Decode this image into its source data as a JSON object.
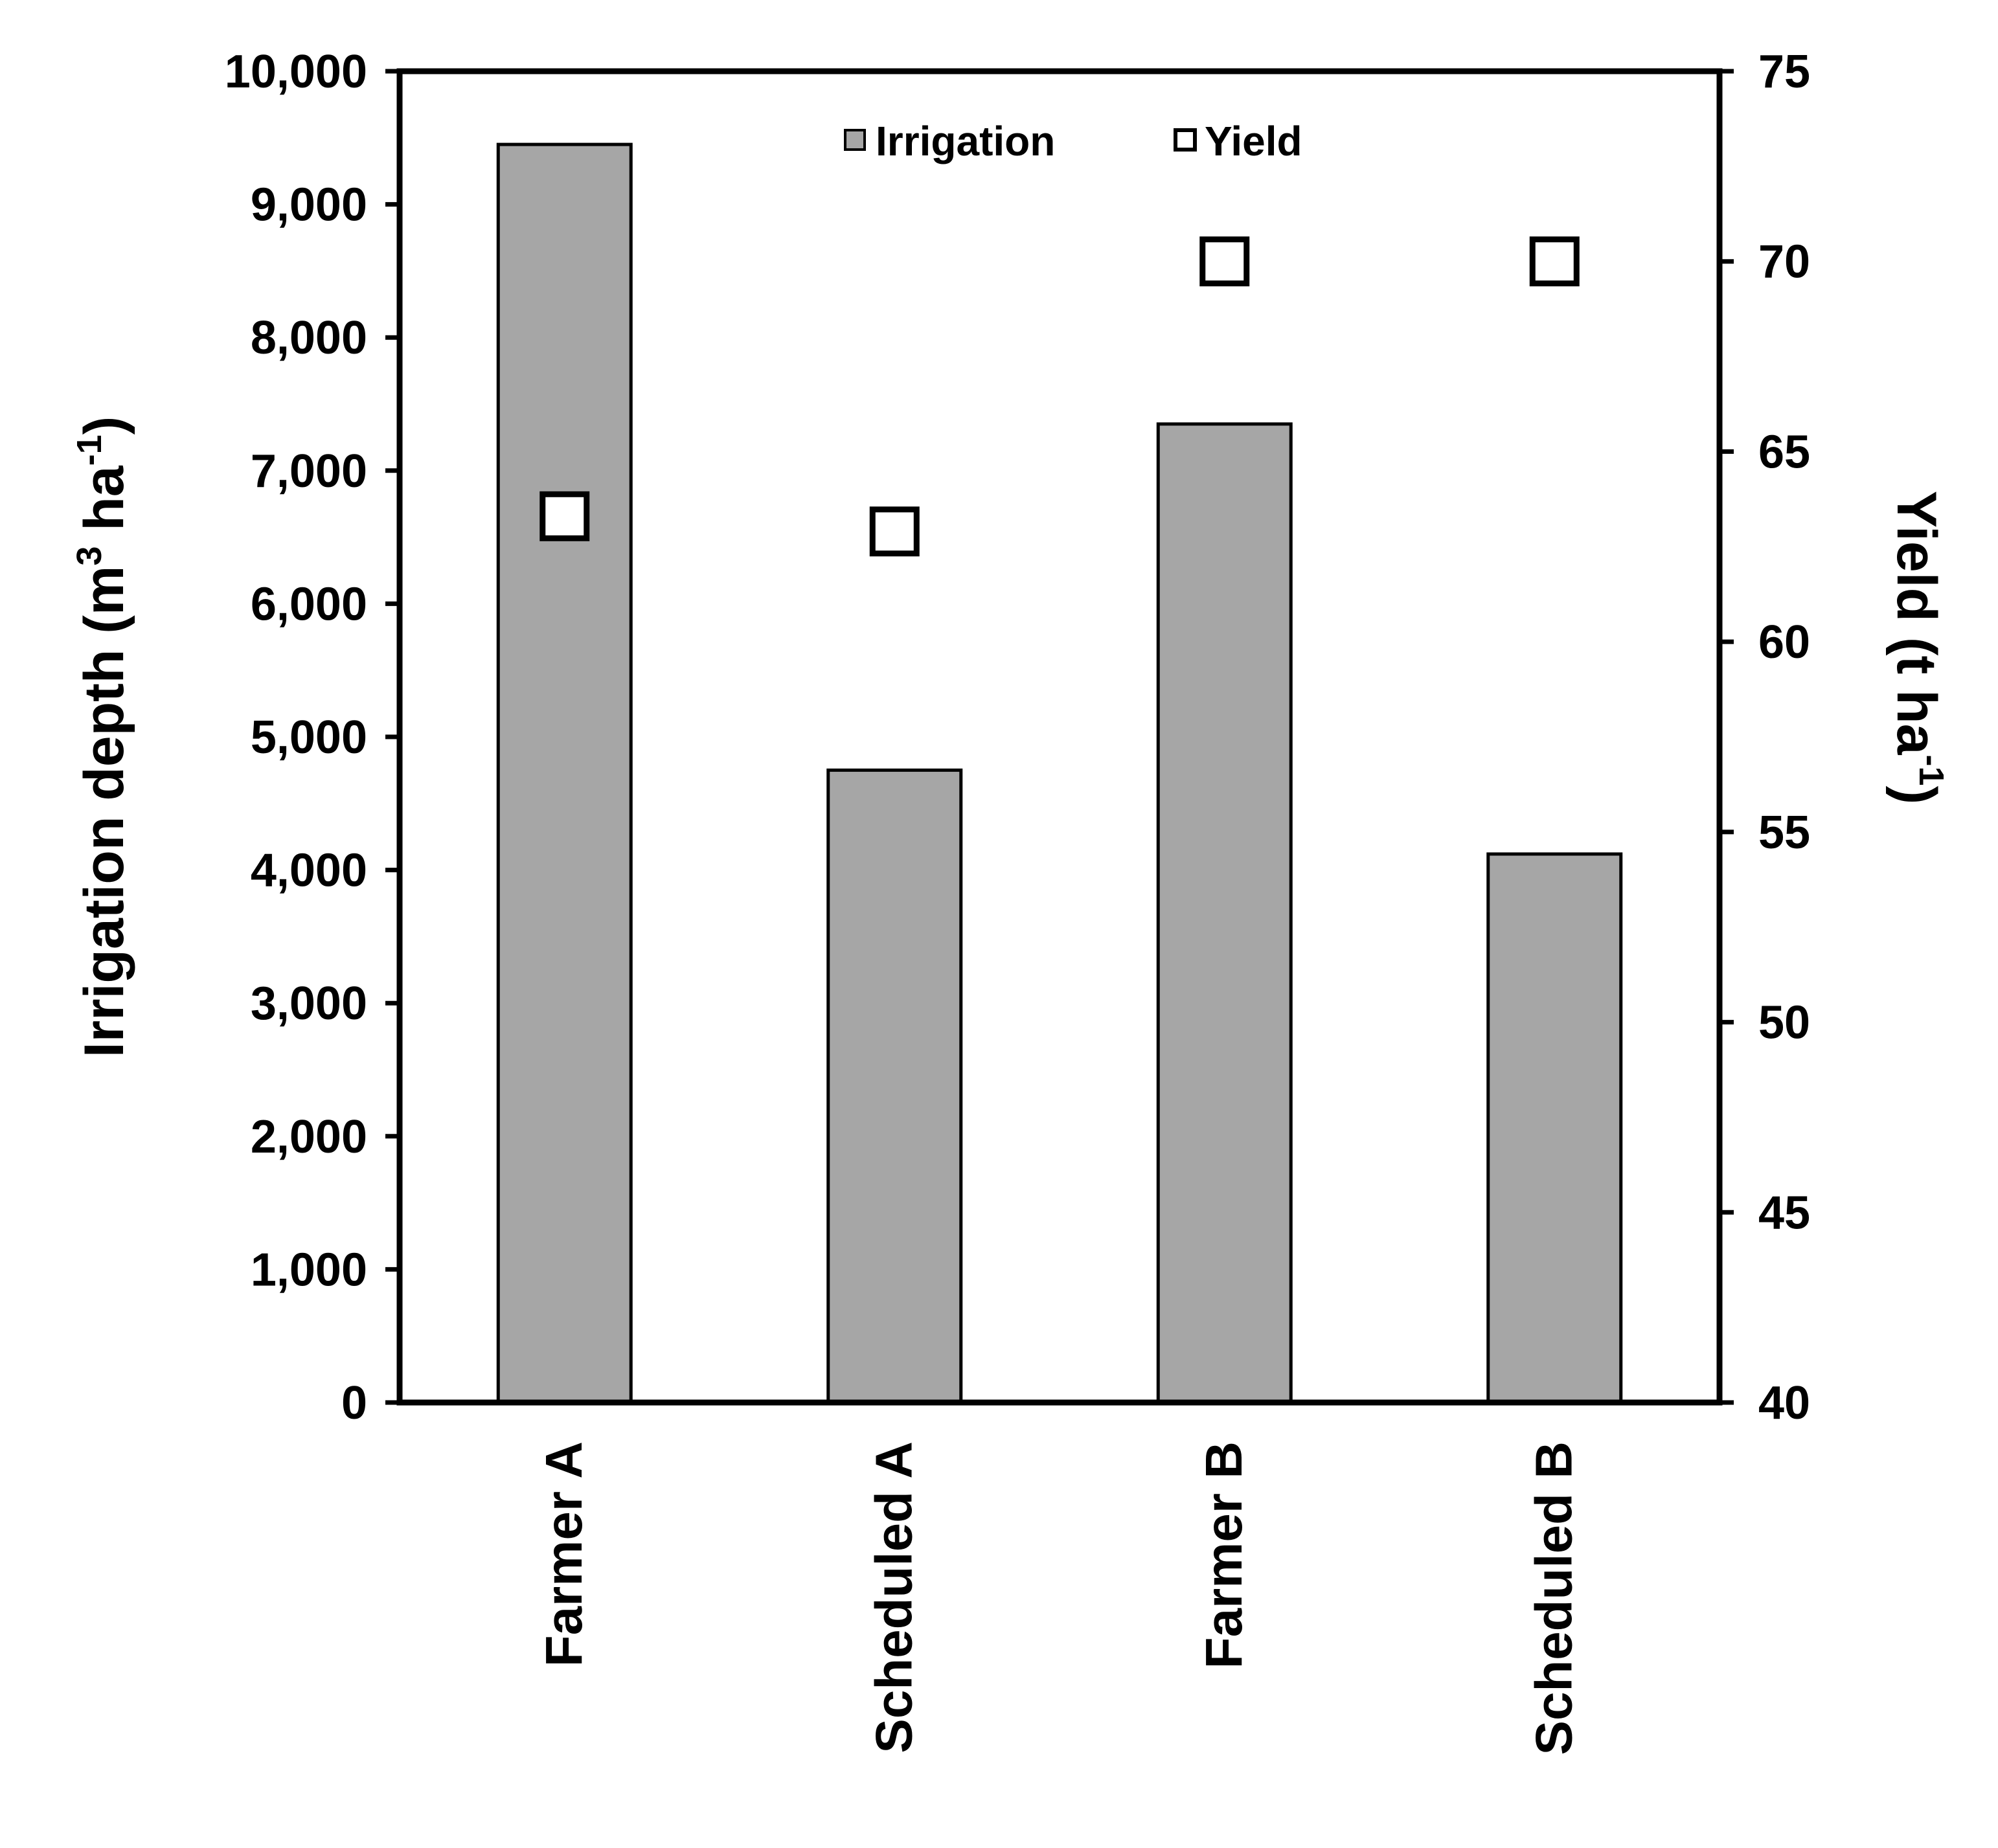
{
  "chart_data": {
    "type": "bar",
    "categories": [
      "Farmer A",
      "Scheduled A",
      "Farmer B",
      "Scheduled B"
    ],
    "series": [
      {
        "name": "Irrigation",
        "type": "bar",
        "axis": "left",
        "values": [
          9450,
          4750,
          7350,
          4120
        ],
        "color": "#a6a6a6"
      },
      {
        "name": "Yield",
        "type": "scatter",
        "axis": "right",
        "marker": "open-square",
        "values": [
          63.3,
          62.9,
          70.0,
          70.0
        ],
        "color": "#000000"
      }
    ],
    "y_left": {
      "label_main": "Irrigation depth (m",
      "label_sup1": "3",
      "label_mid": " ha",
      "label_sup2": "-1",
      "label_end": ")",
      "ylim": [
        0,
        10000
      ],
      "ticks": [
        {
          "value": 0,
          "label": "0"
        },
        {
          "value": 1000,
          "label": "1,000"
        },
        {
          "value": 2000,
          "label": "2,000"
        },
        {
          "value": 3000,
          "label": "3,000"
        },
        {
          "value": 4000,
          "label": "4,000"
        },
        {
          "value": 5000,
          "label": "5,000"
        },
        {
          "value": 6000,
          "label": "6,000"
        },
        {
          "value": 7000,
          "label": "7,000"
        },
        {
          "value": 8000,
          "label": "8,000"
        },
        {
          "value": 9000,
          "label": "9,000"
        },
        {
          "value": 10000,
          "label": "10,000"
        }
      ]
    },
    "y_right": {
      "label_main": "Yield (t ha",
      "label_sup": "-1",
      "label_end": ")",
      "ylim": [
        40,
        75
      ],
      "ticks": [
        {
          "value": 40,
          "label": "40"
        },
        {
          "value": 45,
          "label": "45"
        },
        {
          "value": 50,
          "label": "50"
        },
        {
          "value": 55,
          "label": "55"
        },
        {
          "value": 60,
          "label": "60"
        },
        {
          "value": 65,
          "label": "65"
        },
        {
          "value": 70,
          "label": "70"
        },
        {
          "value": 75,
          "label": "75"
        }
      ]
    },
    "legend": {
      "position": "top-center",
      "items": [
        "Irrigation",
        "Yield"
      ]
    },
    "grid": false
  }
}
